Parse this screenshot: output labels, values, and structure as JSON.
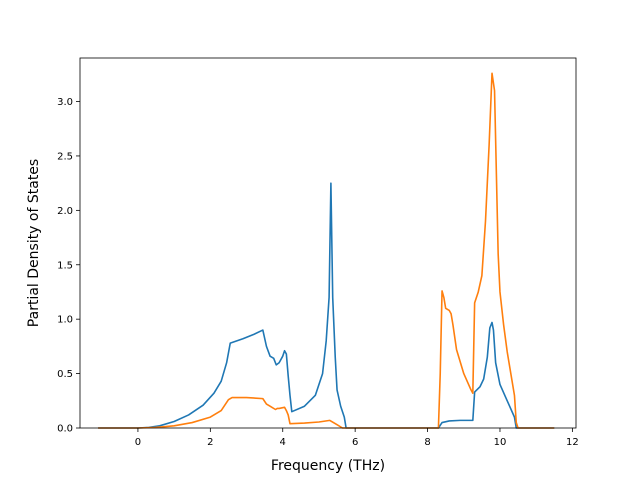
{
  "chart_data": {
    "type": "line",
    "title": "",
    "xlabel": "Frequency (THz)",
    "ylabel": "Partial Density of States",
    "xlim": [
      -1.6,
      12.1
    ],
    "ylim": [
      0.0,
      3.4
    ],
    "x_ticks": [
      0,
      2,
      4,
      6,
      8,
      10,
      12
    ],
    "x_tick_labels": [
      "0",
      "2",
      "4",
      "6",
      "8",
      "10",
      "12"
    ],
    "y_ticks": [
      0.0,
      0.5,
      1.0,
      1.5,
      2.0,
      2.5,
      3.0
    ],
    "y_tick_labels": [
      "0.0",
      "0.5",
      "1.0",
      "1.5",
      "2.0",
      "2.5",
      "3.0"
    ],
    "grid": false,
    "legend": "none",
    "series": [
      {
        "color": "#1f77b4",
        "points": [
          [
            -1.1,
            0.0
          ],
          [
            0.0,
            0.0
          ],
          [
            0.3,
            0.005
          ],
          [
            0.6,
            0.02
          ],
          [
            1.0,
            0.06
          ],
          [
            1.4,
            0.12
          ],
          [
            1.8,
            0.21
          ],
          [
            2.1,
            0.32
          ],
          [
            2.3,
            0.43
          ],
          [
            2.45,
            0.6
          ],
          [
            2.55,
            0.78
          ],
          [
            2.9,
            0.82
          ],
          [
            3.2,
            0.86
          ],
          [
            3.45,
            0.9
          ],
          [
            3.55,
            0.75
          ],
          [
            3.65,
            0.66
          ],
          [
            3.75,
            0.64
          ],
          [
            3.82,
            0.58
          ],
          [
            3.9,
            0.6
          ],
          [
            4.0,
            0.66
          ],
          [
            4.05,
            0.71
          ],
          [
            4.1,
            0.68
          ],
          [
            4.15,
            0.48
          ],
          [
            4.2,
            0.3
          ],
          [
            4.25,
            0.15
          ],
          [
            4.6,
            0.2
          ],
          [
            4.9,
            0.3
          ],
          [
            5.1,
            0.5
          ],
          [
            5.2,
            0.8
          ],
          [
            5.28,
            1.2
          ],
          [
            5.33,
            2.25
          ],
          [
            5.38,
            1.2
          ],
          [
            5.45,
            0.65
          ],
          [
            5.5,
            0.35
          ],
          [
            5.6,
            0.2
          ],
          [
            5.7,
            0.1
          ],
          [
            5.75,
            0.0
          ],
          [
            8.3,
            0.0
          ],
          [
            8.4,
            0.05
          ],
          [
            8.6,
            0.065
          ],
          [
            8.9,
            0.07
          ],
          [
            9.25,
            0.07
          ],
          [
            9.3,
            0.33
          ],
          [
            9.45,
            0.38
          ],
          [
            9.55,
            0.45
          ],
          [
            9.65,
            0.65
          ],
          [
            9.72,
            0.92
          ],
          [
            9.78,
            0.97
          ],
          [
            9.82,
            0.9
          ],
          [
            9.88,
            0.6
          ],
          [
            10.0,
            0.4
          ],
          [
            10.2,
            0.25
          ],
          [
            10.4,
            0.1
          ],
          [
            10.45,
            0.0
          ],
          [
            11.5,
            0.0
          ]
        ]
      },
      {
        "color": "#ff7f0e",
        "points": [
          [
            -1.1,
            0.0
          ],
          [
            0.0,
            0.0
          ],
          [
            0.5,
            0.005
          ],
          [
            1.0,
            0.02
          ],
          [
            1.5,
            0.05
          ],
          [
            2.0,
            0.1
          ],
          [
            2.3,
            0.16
          ],
          [
            2.5,
            0.26
          ],
          [
            2.6,
            0.28
          ],
          [
            3.0,
            0.28
          ],
          [
            3.45,
            0.27
          ],
          [
            3.55,
            0.22
          ],
          [
            3.65,
            0.2
          ],
          [
            3.7,
            0.19
          ],
          [
            3.8,
            0.17
          ],
          [
            3.85,
            0.18
          ],
          [
            3.9,
            0.18
          ],
          [
            4.05,
            0.19
          ],
          [
            4.1,
            0.16
          ],
          [
            4.15,
            0.12
          ],
          [
            4.2,
            0.04
          ],
          [
            4.6,
            0.045
          ],
          [
            5.0,
            0.055
          ],
          [
            5.3,
            0.07
          ],
          [
            5.4,
            0.05
          ],
          [
            5.5,
            0.03
          ],
          [
            5.65,
            0.0
          ],
          [
            8.3,
            0.0
          ],
          [
            8.35,
            0.5
          ],
          [
            8.4,
            1.26
          ],
          [
            8.45,
            1.2
          ],
          [
            8.5,
            1.1
          ],
          [
            8.6,
            1.08
          ],
          [
            8.65,
            1.05
          ],
          [
            8.7,
            0.95
          ],
          [
            8.8,
            0.72
          ],
          [
            9.0,
            0.5
          ],
          [
            9.2,
            0.35
          ],
          [
            9.25,
            0.32
          ],
          [
            9.3,
            1.15
          ],
          [
            9.4,
            1.25
          ],
          [
            9.5,
            1.4
          ],
          [
            9.6,
            1.9
          ],
          [
            9.7,
            2.6
          ],
          [
            9.78,
            3.26
          ],
          [
            9.85,
            3.1
          ],
          [
            9.95,
            1.6
          ],
          [
            10.0,
            1.25
          ],
          [
            10.1,
            0.95
          ],
          [
            10.2,
            0.7
          ],
          [
            10.3,
            0.5
          ],
          [
            10.4,
            0.3
          ],
          [
            10.45,
            0.05
          ],
          [
            10.5,
            0.0
          ],
          [
            11.5,
            0.0
          ]
        ]
      }
    ]
  }
}
